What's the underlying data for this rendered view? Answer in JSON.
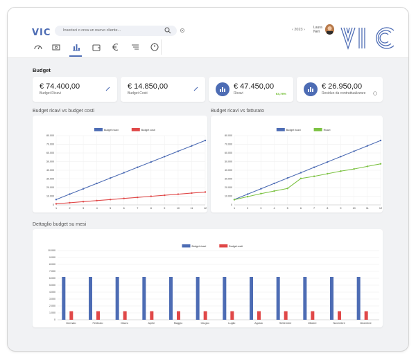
{
  "header": {
    "logo_small": "VIC",
    "search_placeholder": "Inserisci o crea un nuovo cliente...",
    "year": "‹ 2023 ›",
    "user_first": "Laura",
    "user_last": "Neri",
    "brand": "VIC"
  },
  "nav": {
    "icons": [
      "dashboard-icon",
      "money-icon",
      "chart-icon",
      "wallet-icon",
      "euro-icon",
      "list-icon",
      "clock-icon"
    ],
    "active_index": 2
  },
  "page": {
    "title": "Budget"
  },
  "cards": [
    {
      "value": "€ 74.400,00",
      "label": "Budget Ricavi",
      "icon": "pencil-icon"
    },
    {
      "value": "€ 14.850,00",
      "label": "Budget Costi",
      "icon": "pencil-icon"
    },
    {
      "value": "€ 47.450,00",
      "label": "Ricavi",
      "percent": "63,78%",
      "icon": "chart-icon"
    },
    {
      "value": "€ 26.950,00",
      "label": "Residuo da contrattualizzare",
      "icon": "chart-icon"
    }
  ],
  "sections": {
    "chart1_title": "Budget ricavi vs budget costi",
    "chart2_title": "Budget ricavi vs fatturato",
    "chart3_title": "Dettaglio budget su mesi"
  },
  "colors": {
    "blue": "#4d6cb4",
    "red": "#e04848",
    "green": "#7cc242"
  },
  "chart_data": [
    {
      "type": "line",
      "title": "Budget ricavi vs budget costi",
      "x": [
        1,
        2,
        3,
        4,
        5,
        6,
        7,
        8,
        9,
        10,
        11,
        12
      ],
      "ylim": [
        0,
        80000
      ],
      "yticks": [
        "0",
        "10.000",
        "20.000",
        "30.000",
        "40.000",
        "50.000",
        "60.000",
        "70.000",
        "80.000"
      ],
      "series": [
        {
          "name": "Budget ricavi",
          "color": "#4d6cb4",
          "values": [
            6200,
            12400,
            18600,
            24800,
            31000,
            37200,
            43400,
            49600,
            55800,
            62000,
            68200,
            74400
          ]
        },
        {
          "name": "Budget costi",
          "color": "#e04848",
          "values": [
            1238,
            2475,
            3713,
            4950,
            6188,
            7425,
            8663,
            9900,
            11138,
            12375,
            13613,
            14850
          ]
        }
      ]
    },
    {
      "type": "line",
      "title": "Budget ricavi vs fatturato",
      "x": [
        1,
        2,
        3,
        4,
        5,
        6,
        7,
        8,
        9,
        10,
        11,
        12
      ],
      "ylim": [
        0,
        80000
      ],
      "yticks": [
        "0",
        "10.000",
        "20.000",
        "30.000",
        "40.000",
        "50.000",
        "60.000",
        "70.000",
        "80.000"
      ],
      "series": [
        {
          "name": "Budget ricavi",
          "color": "#4d6cb4",
          "values": [
            6200,
            12400,
            18600,
            24800,
            31000,
            37200,
            43400,
            49600,
            55800,
            62000,
            68200,
            74400
          ]
        },
        {
          "name": "Ricavi",
          "color": "#7cc242",
          "values": [
            6000,
            9500,
            13000,
            16000,
            19000,
            30500,
            33000,
            36000,
            39000,
            41500,
            44500,
            47450
          ]
        }
      ]
    },
    {
      "type": "bar",
      "title": "Dettaglio budget su mesi",
      "categories": [
        "Gennaio",
        "Febbraio",
        "Marzo",
        "Aprile",
        "Maggio",
        "Giugno",
        "Luglio",
        "Agosto",
        "Settembre",
        "Ottobre",
        "Novembre",
        "Dicembre"
      ],
      "ylim": [
        0,
        10000
      ],
      "yticks": [
        "0",
        "1.000",
        "2.000",
        "3.000",
        "4.000",
        "5.000",
        "6.000",
        "7.000",
        "8.000",
        "9.000",
        "10.000"
      ],
      "series": [
        {
          "name": "Budget ricavi",
          "color": "#4d6cb4",
          "values": [
            6200,
            6200,
            6200,
            6200,
            6200,
            6200,
            6200,
            6200,
            6200,
            6200,
            6200,
            6200
          ]
        },
        {
          "name": "Budget costi",
          "color": "#e04848",
          "values": [
            1237.5,
            1237.5,
            1237.5,
            1237.5,
            1237.5,
            1237.5,
            1237.5,
            1237.5,
            1237.5,
            1237.5,
            1237.5,
            1237.5
          ]
        }
      ]
    }
  ]
}
